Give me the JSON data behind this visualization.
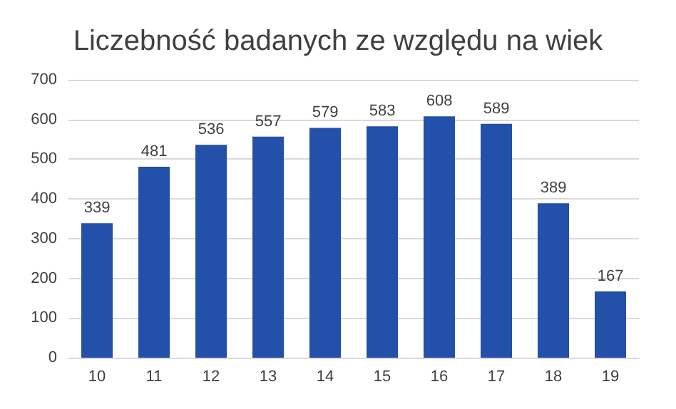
{
  "chart_data": {
    "type": "bar",
    "title": "Liczebność badanych ze względu na wiek",
    "categories": [
      "10",
      "11",
      "12",
      "13",
      "14",
      "15",
      "16",
      "17",
      "18",
      "19"
    ],
    "values": [
      339,
      481,
      536,
      557,
      579,
      583,
      608,
      589,
      389,
      167
    ],
    "color": "#2350a8",
    "ylim": [
      0,
      700
    ],
    "yticks": [
      0,
      100,
      200,
      300,
      400,
      500,
      600,
      700
    ],
    "grid": "y",
    "data_labels": true
  }
}
